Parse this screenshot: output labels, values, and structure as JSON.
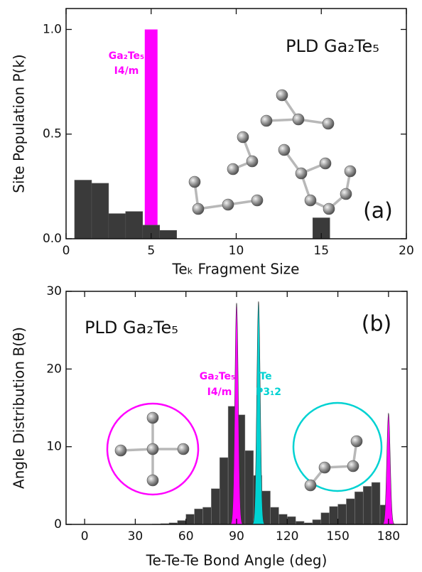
{
  "chart_data": [
    {
      "type": "bar",
      "xlabel": "Teₖ Fragment Size",
      "ylabel": "Site Population P(k)",
      "title": "PLD Ga₂Te₅",
      "panel": "(a)",
      "xlim": [
        0,
        20
      ],
      "ylim": [
        0,
        1.1
      ],
      "xticks": [
        0,
        5,
        10,
        15,
        20
      ],
      "yticks": [
        {
          "value": 0,
          "label": "0.0"
        },
        {
          "value": 0.5,
          "label": "0.5"
        },
        {
          "value": 1.0,
          "label": "1.0"
        }
      ],
      "series": [
        {
          "name": "Ga₂Te₅",
          "subtitle": "I4/m",
          "color": "#ff00ff",
          "x": [
            5
          ],
          "values": [
            1.0
          ]
        },
        {
          "name": "PLD Ga₂Te₅",
          "color": "#3a3a3a",
          "x": [
            1,
            2,
            3,
            4,
            5,
            6,
            15
          ],
          "values": [
            0.28,
            0.265,
            0.12,
            0.13,
            0.065,
            0.04,
            0.1
          ]
        }
      ]
    },
    {
      "type": "histogram",
      "xlabel": "Te-Te-Te Bond Angle (deg)",
      "ylabel": "Angle Distribution B(θ)",
      "title": "PLD Ga₂Te₅",
      "panel": "(b)",
      "xlim": [
        -11,
        191
      ],
      "ylim": [
        0,
        30
      ],
      "xticks": [
        0,
        30,
        60,
        90,
        120,
        150,
        180
      ],
      "yticks": [
        0,
        10,
        20,
        30
      ],
      "color": "#3a3a3a",
      "bins": [
        40,
        45,
        50,
        55,
        60,
        65,
        70,
        75,
        80,
        85,
        90,
        95,
        100,
        105,
        110,
        115,
        120,
        125,
        130,
        135,
        140,
        145,
        150,
        155,
        160,
        165,
        170,
        175,
        180
      ],
      "values": [
        0.05,
        0.1,
        0.2,
        0.5,
        1.3,
        2.0,
        2.2,
        4.6,
        8.6,
        15.2,
        14.1,
        9.5,
        6.3,
        4.3,
        2.2,
        1.3,
        1.0,
        0.4,
        0.2,
        0.6,
        1.5,
        2.3,
        2.6,
        3.3,
        4.2,
        4.9,
        5.4,
        2.5
      ],
      "sigma": 1.0,
      "peaks": [
        {
          "name": "Ga₂Te₅",
          "subtitle": "I4/m",
          "color": "#ff00ff",
          "centers": [
            90,
            180
          ],
          "values": [
            28.5,
            14.3
          ]
        },
        {
          "name": "Te",
          "subtitle": "P3₁2",
          "color": "#00d2d2",
          "centers": [
            103
          ],
          "values": [
            28.7
          ]
        }
      ]
    }
  ]
}
